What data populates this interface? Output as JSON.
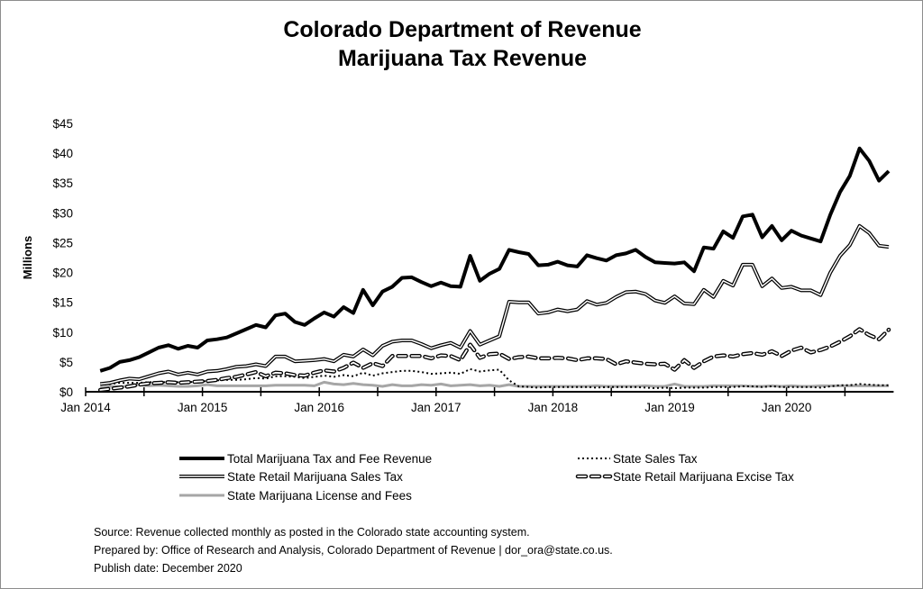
{
  "chart_data": {
    "type": "line",
    "title": [
      "Colorado Department of Revenue",
      "Marijuana Tax Revenue"
    ],
    "ylabel": "Millions",
    "xlabel": "",
    "ylim": [
      0,
      45
    ],
    "yticks": [
      0,
      5,
      10,
      15,
      20,
      25,
      30,
      35,
      40,
      45
    ],
    "ytick_labels": [
      "$0",
      "$5",
      "$10",
      "$15",
      "$20",
      "$25",
      "$30",
      "$35",
      "$40",
      "$45"
    ],
    "xtick_labels": [
      "Jan 2014",
      "Jan 2015",
      "Jan 2016",
      "Jan 2017",
      "Jan 2018",
      "Jan 2019",
      "Jan 2020"
    ],
    "x_start": "2014-02",
    "x_end": "2020-11",
    "x_frequency": "monthly",
    "grid": false,
    "legend_placement": "bottom",
    "series": [
      {
        "name": "Total Marijuana Tax and Fee Revenue",
        "style": "thick-solid",
        "color": "#000000",
        "values": [
          3.5,
          4,
          5,
          5.3,
          5.8,
          6.6,
          7.4,
          7.8,
          7.2,
          7.7,
          7.4,
          8.6,
          8.8,
          9.1,
          9.8,
          10.5,
          11.2,
          10.8,
          12.8,
          13.1,
          11.7,
          11.2,
          12.3,
          13.3,
          12.6,
          14.2,
          13.2,
          17.1,
          14.5,
          16.8,
          17.6,
          19.1,
          19.2,
          18.4,
          17.7,
          18.3,
          17.7,
          17.6,
          22.8,
          18.6,
          19.8,
          20.6,
          23.8,
          23.4,
          23.1,
          21.2,
          21.3,
          21.8,
          21.2,
          21.0,
          22.9,
          22.4,
          22.0,
          22.9,
          23.2,
          23.8,
          22.6,
          21.7,
          21.6,
          21.5,
          21.7,
          20.2,
          24.2,
          24.0,
          26.9,
          25.8,
          29.4,
          29.7,
          25.9,
          27.8,
          25.4,
          27.0,
          26.2,
          25.7,
          25.2,
          29.7,
          33.5,
          36.2,
          40.8,
          38.7,
          35.4,
          37.0
        ]
      },
      {
        "name": "State Sales Tax",
        "style": "dotted",
        "color": "#000000",
        "values": [
          1.2,
          1.3,
          1.5,
          1.5,
          1.5,
          1.6,
          1.6,
          1.6,
          1.6,
          1.6,
          1.7,
          1.8,
          1.9,
          2.0,
          2.0,
          2.1,
          2.3,
          2.2,
          2.6,
          2.6,
          2.5,
          2.3,
          2.5,
          2.7,
          2.5,
          2.8,
          2.6,
          3.2,
          2.7,
          3.1,
          3.3,
          3.5,
          3.5,
          3.3,
          3.0,
          3.1,
          3.2,
          3.0,
          3.8,
          3.4,
          3.6,
          3.7,
          1.9,
          0.9,
          0.8,
          0.7,
          0.8,
          0.8,
          0.8,
          0.8,
          0.8,
          0.7,
          0.8,
          0.8,
          0.8,
          0.8,
          0.7,
          0.6,
          0.7,
          0.6,
          0.7,
          0.7,
          0.7,
          0.8,
          0.8,
          0.8,
          0.9,
          0.9,
          0.8,
          0.9,
          0.8,
          0.8,
          0.8,
          0.8,
          0.7,
          0.9,
          1.1,
          1.1,
          1.3,
          1.2,
          1.1,
          1.1
        ]
      },
      {
        "name": "State Retail Marijuana Sales Tax",
        "style": "double",
        "color": "#000000",
        "values": [
          1.3,
          1.5,
          1.9,
          2.2,
          2.1,
          2.6,
          3.1,
          3.4,
          2.9,
          3.2,
          2.9,
          3.4,
          3.5,
          3.8,
          4.2,
          4.3,
          4.6,
          4.3,
          5.9,
          5.9,
          5.1,
          5.2,
          5.3,
          5.5,
          5.1,
          6.2,
          5.9,
          7.1,
          6.1,
          7.7,
          8.4,
          8.6,
          8.6,
          8.0,
          7.3,
          7.8,
          8.2,
          7.4,
          10.2,
          7.9,
          8.6,
          9.3,
          15.1,
          15.0,
          15.0,
          13.1,
          13.3,
          13.8,
          13.5,
          13.8,
          15.2,
          14.6,
          14.9,
          15.9,
          16.7,
          16.8,
          16.4,
          15.3,
          14.9,
          16.0,
          14.8,
          14.7,
          17.1,
          15.9,
          18.6,
          17.8,
          21.3,
          21.3,
          17.7,
          19.0,
          17.4,
          17.6,
          17.0,
          17.0,
          16.2,
          20.0,
          22.8,
          24.6,
          27.8,
          26.6,
          24.5,
          24.3
        ]
      },
      {
        "name": "State Retail Marijuana Excise Tax",
        "style": "dashed-outline",
        "color": "#000000",
        "values": [
          0.3,
          0.5,
          0.7,
          0.9,
          1.2,
          1.4,
          1.5,
          1.6,
          1.5,
          1.6,
          1.7,
          1.8,
          2.0,
          2.3,
          2.5,
          2.9,
          3.3,
          2.6,
          3.2,
          3.1,
          2.8,
          2.7,
          3.2,
          3.6,
          3.4,
          4.0,
          4.9,
          4.0,
          4.8,
          4.3,
          6.0,
          6.0,
          6.0,
          6.0,
          5.6,
          6.1,
          6.0,
          5.3,
          7.9,
          5.7,
          6.3,
          6.4,
          5.5,
          5.8,
          5.9,
          5.6,
          5.6,
          5.7,
          5.6,
          5.3,
          5.6,
          5.6,
          5.5,
          4.6,
          5.1,
          4.9,
          4.7,
          4.6,
          4.7,
          3.7,
          5.3,
          4.0,
          5.1,
          5.9,
          6.1,
          5.9,
          6.3,
          6.5,
          6.2,
          6.8,
          6.0,
          6.9,
          7.4,
          6.6,
          7.0,
          7.6,
          8.4,
          9.3,
          10.5,
          9.5,
          8.8,
          10.4
        ]
      },
      {
        "name": "State Marijuana License and Fees",
        "style": "solid",
        "color": "#a6a6a6",
        "values": [
          0.7,
          0.9,
          0.8,
          1.0,
          1.2,
          1.0,
          1.1,
          1.0,
          0.9,
          0.9,
          1.0,
          1.2,
          1.0,
          1.0,
          1.0,
          1.0,
          1.0,
          1.0,
          1.1,
          1.1,
          1.1,
          1.1,
          1.0,
          1.6,
          1.3,
          1.2,
          1.4,
          1.2,
          1.1,
          0.9,
          1.2,
          1.0,
          1.0,
          1.2,
          1.1,
          1.3,
          1.0,
          1.1,
          1.2,
          1.0,
          1.1,
          0.9,
          1.2,
          0.9,
          0.9,
          0.9,
          0.9,
          0.9,
          0.9,
          0.9,
          0.9,
          1.0,
          0.9,
          0.9,
          0.9,
          0.9,
          1.0,
          0.9,
          0.9,
          1.3,
          0.9,
          0.9,
          0.9,
          1.0,
          1.0,
          1.0,
          1.0,
          0.9,
          0.9,
          1.0,
          0.9,
          1.0,
          0.9,
          0.9,
          1.0,
          1.0,
          1.0,
          1.0,
          1.0,
          1.0,
          1.0,
          1.0
        ]
      }
    ]
  },
  "footer": {
    "source": "Source: Revenue collected monthly as posted in the Colorado state accounting system.",
    "prepared": "Prepared by:  Office of Research and Analysis, Colorado Department of Revenue | dor_ora@state.co.us.",
    "publish": "Publish date:  December 2020"
  }
}
